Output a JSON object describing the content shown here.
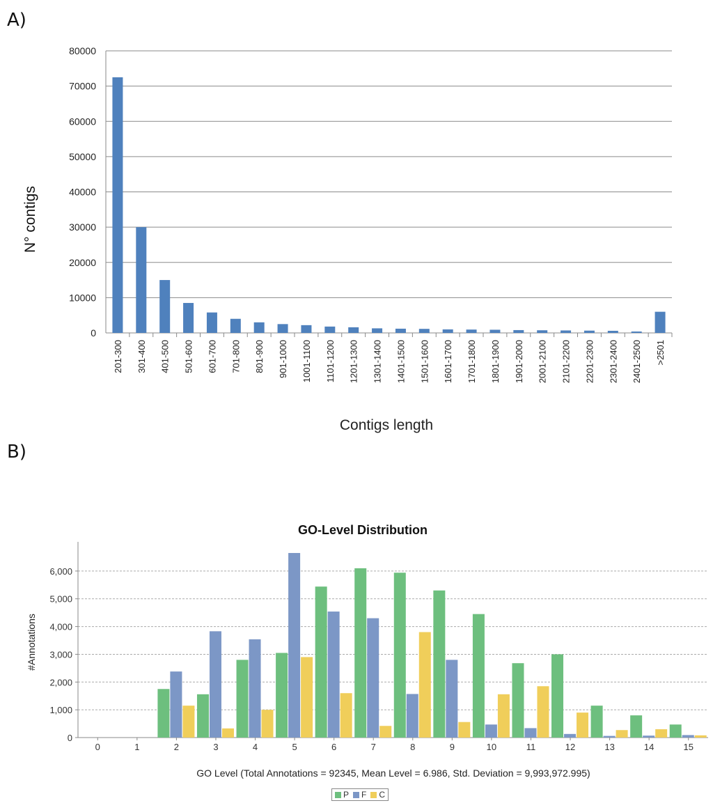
{
  "panel_labels": {
    "a": "A)",
    "b": "B)"
  },
  "chart_data": [
    {
      "type": "bar",
      "title": "",
      "xlabel": "Contigs length",
      "ylabel": "N° contigs",
      "ylim": [
        0,
        80000
      ],
      "yticks": [
        0,
        10000,
        20000,
        30000,
        40000,
        50000,
        60000,
        70000,
        80000
      ],
      "ytick_labels": [
        "0",
        "10000",
        "20000",
        "30000",
        "40000",
        "50000",
        "60000",
        "70000",
        "80000"
      ],
      "grid": true,
      "color": "#4f81bd",
      "categories": [
        "201-300",
        "301-400",
        "401-500",
        "501-600",
        "601-700",
        "701-800",
        "801-900",
        "901-1000",
        "1001-1100",
        "1101-1200",
        "1201-1300",
        "1301-1400",
        "1401-1500",
        "1501-1600",
        "1601-1700",
        "1701-1800",
        "1801-1900",
        "1901-2000",
        "2001-2100",
        "2101-2200",
        "2201-2300",
        "2301-2400",
        "2401-2500",
        ">2501"
      ],
      "values": [
        72500,
        30000,
        15000,
        8500,
        5800,
        4000,
        3000,
        2500,
        2200,
        1800,
        1600,
        1300,
        1200,
        1150,
        1000,
        950,
        900,
        800,
        750,
        700,
        650,
        600,
        400,
        6000
      ]
    },
    {
      "type": "bar",
      "title": "GO-Level Distribution",
      "xlabel": "GO Level  (Total Annotations = 92345, Mean Level = 6.986, Std. Deviation = 9,993,972.995)",
      "ylabel": "#Annotations",
      "ylim": [
        0,
        6800
      ],
      "yticks": [
        0,
        1000,
        2000,
        3000,
        4000,
        5000,
        6000
      ],
      "ytick_labels": [
        "0",
        "1,000",
        "2,000",
        "3,000",
        "4,000",
        "5,000",
        "6,000"
      ],
      "grid": true,
      "legend_position": "bottom-center",
      "categories": [
        "0",
        "1",
        "2",
        "3",
        "4",
        "5",
        "6",
        "7",
        "8",
        "9",
        "10",
        "11",
        "12",
        "13",
        "14",
        "15"
      ],
      "series": [
        {
          "name": "P",
          "color": "#6dbf7e",
          "values": [
            0,
            0,
            1750,
            1560,
            2800,
            3050,
            5440,
            6100,
            5940,
            5300,
            4450,
            2680,
            3000,
            1150,
            800,
            470
          ]
        },
        {
          "name": "F",
          "color": "#7c97c6",
          "values": [
            0,
            0,
            2380,
            3830,
            3540,
            6650,
            4540,
            4300,
            1570,
            2800,
            470,
            340,
            130,
            60,
            70,
            90
          ]
        },
        {
          "name": "C",
          "color": "#f0ce5a",
          "values": [
            0,
            0,
            1150,
            330,
            1000,
            2900,
            1600,
            420,
            3800,
            560,
            1560,
            1850,
            900,
            270,
            300,
            80
          ]
        }
      ]
    }
  ]
}
